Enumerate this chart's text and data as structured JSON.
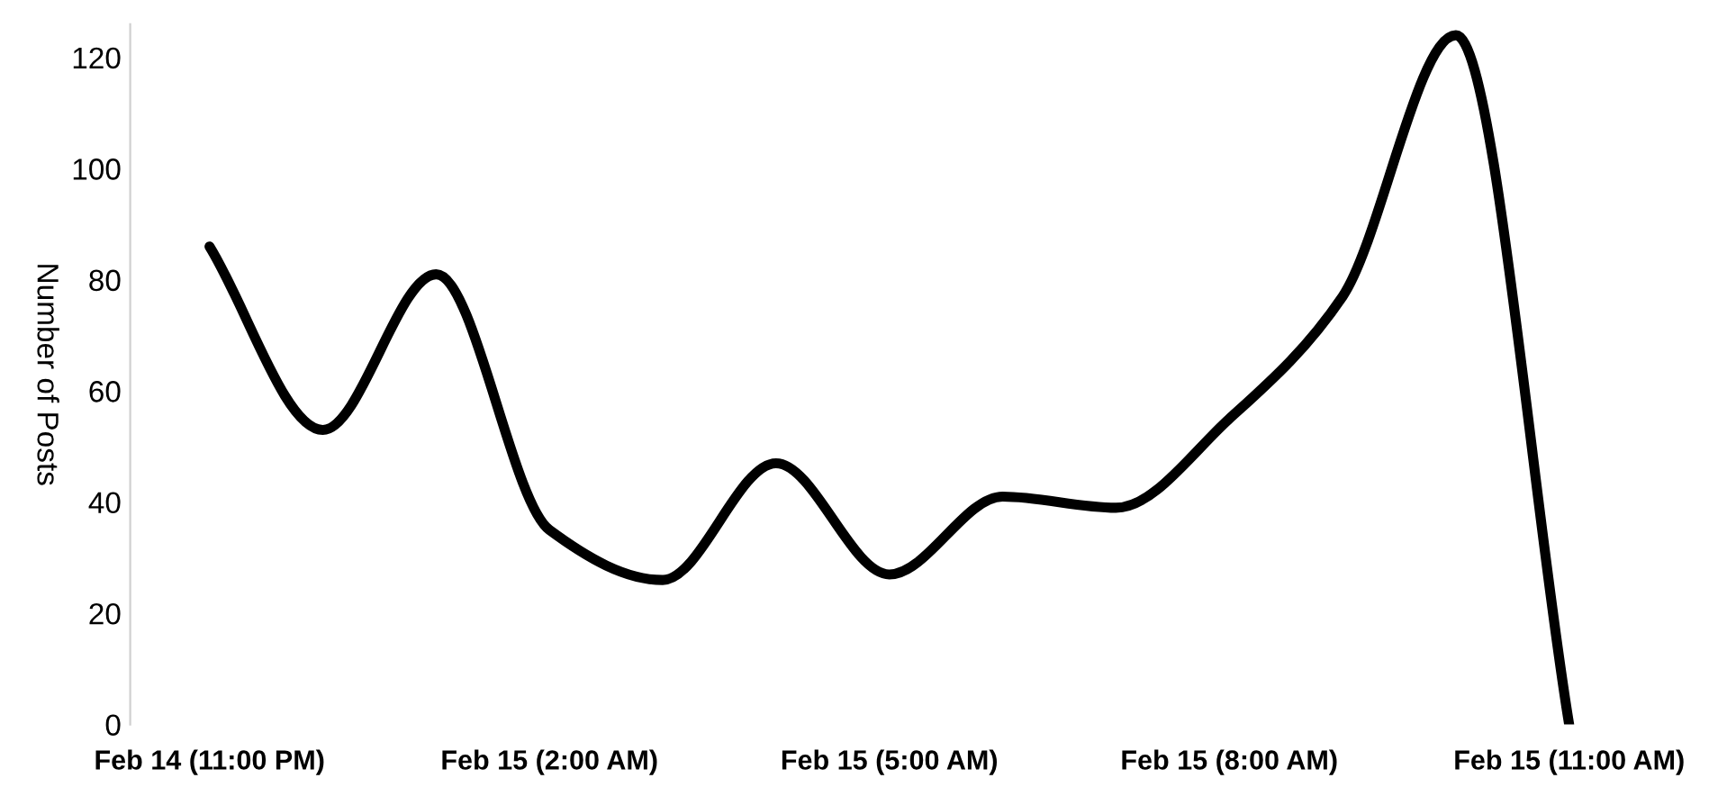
{
  "chart_data": {
    "type": "line",
    "ylabel": "Number of Posts",
    "categories": [
      "Feb 14 (11:00 PM)",
      null,
      null,
      "Feb 15 (2:00 AM)",
      null,
      null,
      "Feb 15 (5:00 AM)",
      null,
      null,
      "Feb 15 (8:00 AM)",
      null,
      null,
      "Feb 15 (11:00 AM)"
    ],
    "series": [
      {
        "color": "#000000",
        "values": [
          86,
          53,
          81,
          35,
          26,
          47,
          27,
          41,
          39,
          55,
          77,
          124,
          0
        ]
      }
    ],
    "ylim": [
      0,
      126
    ],
    "yticks": [
      0,
      20,
      40,
      60,
      80,
      100,
      120
    ],
    "grid": false,
    "marker": "none",
    "line_style": "solid"
  }
}
